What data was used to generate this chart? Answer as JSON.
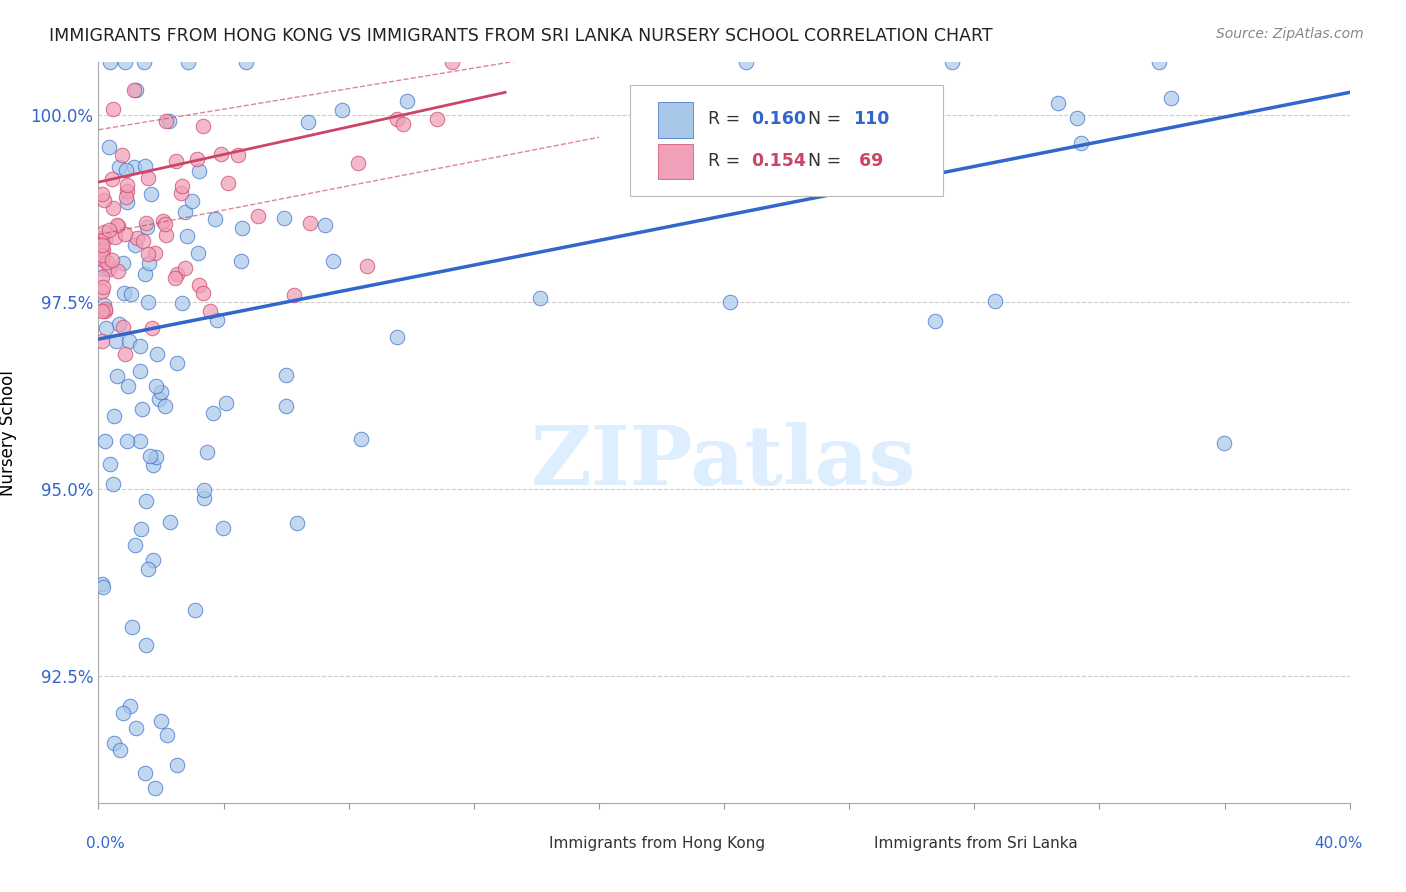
{
  "title": "IMMIGRANTS FROM HONG KONG VS IMMIGRANTS FROM SRI LANKA NURSERY SCHOOL CORRELATION CHART",
  "source_text": "Source: ZipAtlas.com",
  "ylabel": "Nursery School",
  "ytick_labels": [
    "100.0%",
    "97.5%",
    "95.0%",
    "92.5%"
  ],
  "ytick_values": [
    1.0,
    0.975,
    0.95,
    0.925
  ],
  "xmin": 0.0,
  "xmax": 0.4,
  "ymin": 0.908,
  "ymax": 1.007,
  "color_hk": "#A8C8E8",
  "color_sl": "#F0A0B8",
  "color_hk_line": "#3366CC",
  "color_sl_line": "#CC4466",
  "watermark_color": "#DDEEFF"
}
